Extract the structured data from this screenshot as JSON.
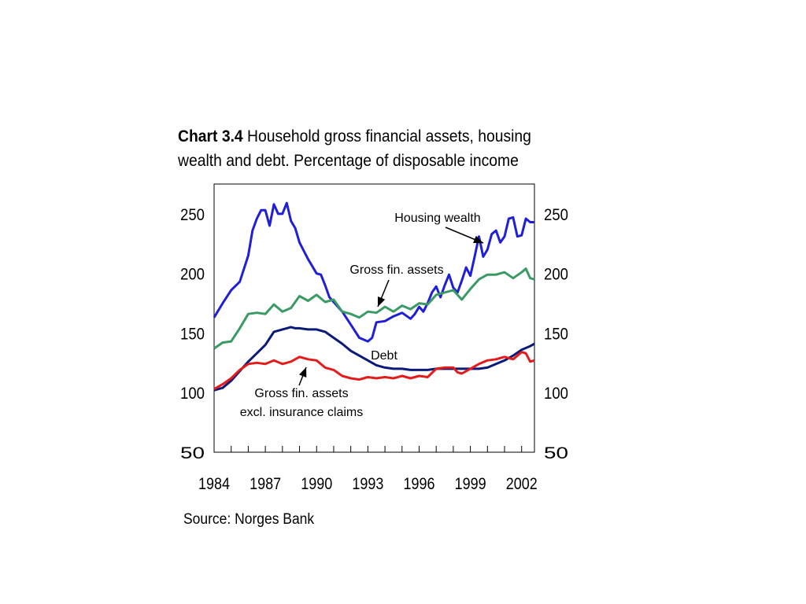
{
  "title": {
    "label": "Chart 3.4",
    "text": "Household gross financial assets, housing wealth and debt. Percentage of disposable income"
  },
  "source": "Source: Norges Bank",
  "chart_data": {
    "type": "line",
    "x_ticks": [
      "1984",
      "1987",
      "1990",
      "1993",
      "1996",
      "1999",
      "2002"
    ],
    "y_ticks": [
      50,
      100,
      150,
      200,
      250
    ],
    "ylim": [
      50,
      275
    ],
    "xlim": [
      1984,
      2002.75
    ],
    "grid": false,
    "colors": {
      "housing": "#1f1fd8",
      "gross": "#3a9a64",
      "debt": "#0a1a78",
      "gross_excl": "#e41b1b"
    },
    "annotations": [
      {
        "text": "Housing wealth"
      },
      {
        "text": "Gross fin. assets"
      },
      {
        "text": "Debt"
      },
      {
        "lines": [
          "Gross fin. assets",
          "excl. insurance claims"
        ]
      }
    ],
    "series": [
      {
        "key": "housing",
        "name": "Housing wealth",
        "x": [
          1984.0,
          1984.5,
          1985.0,
          1985.5,
          1986.0,
          1986.25,
          1986.5,
          1986.75,
          1987.0,
          1987.25,
          1987.5,
          1987.75,
          1988.0,
          1988.25,
          1988.5,
          1988.75,
          1989.0,
          1989.5,
          1990.0,
          1990.25,
          1990.5,
          1990.75,
          1991.0,
          1991.5,
          1992.0,
          1992.5,
          1993.0,
          1993.25,
          1993.5,
          1994.0,
          1994.5,
          1995.0,
          1995.5,
          1995.75,
          1996.0,
          1996.25,
          1996.5,
          1996.75,
          1997.0,
          1997.25,
          1997.5,
          1997.75,
          1998.0,
          1998.25,
          1998.5,
          1998.75,
          1999.0,
          1999.25,
          1999.5,
          1999.75,
          2000.0,
          2000.25,
          2000.5,
          2000.75,
          2001.0,
          2001.25,
          2001.5,
          2001.75,
          2002.0,
          2002.25,
          2002.5,
          2002.75
        ],
        "values": [
          163,
          175,
          186,
          193,
          215,
          236,
          246,
          253,
          253,
          240,
          258,
          250,
          250,
          259,
          244,
          238,
          226,
          212,
          200,
          199,
          190,
          180,
          176,
          168,
          157,
          146,
          143,
          146,
          159,
          160,
          164,
          167,
          162,
          166,
          172,
          168,
          175,
          184,
          189,
          180,
          190,
          199,
          188,
          184,
          194,
          205,
          198,
          214,
          231,
          214,
          220,
          233,
          236,
          226,
          231,
          246,
          247,
          231,
          232,
          246,
          243,
          243
        ]
      },
      {
        "key": "gross",
        "name": "Gross fin. assets",
        "x": [
          1984.0,
          1984.5,
          1985.0,
          1985.5,
          1986.0,
          1986.5,
          1987.0,
          1987.5,
          1988.0,
          1988.5,
          1989.0,
          1989.5,
          1990.0,
          1990.5,
          1991.0,
          1991.5,
          1992.0,
          1992.5,
          1993.0,
          1993.5,
          1994.0,
          1994.5,
          1995.0,
          1995.5,
          1996.0,
          1996.5,
          1997.0,
          1997.5,
          1998.0,
          1998.5,
          1999.0,
          1999.5,
          2000.0,
          2000.5,
          2001.0,
          2001.5,
          2002.0,
          2002.25,
          2002.5,
          2002.75
        ],
        "values": [
          137,
          142,
          143,
          154,
          166,
          167,
          166,
          174,
          168,
          171,
          181,
          177,
          182,
          176,
          178,
          168,
          166,
          163,
          168,
          167,
          172,
          168,
          173,
          170,
          175,
          174,
          182,
          184,
          186,
          178,
          187,
          195,
          199,
          199,
          201,
          196,
          201,
          204,
          196,
          195
        ]
      },
      {
        "key": "debt",
        "name": "Debt",
        "x": [
          1984.0,
          1984.5,
          1985.0,
          1985.5,
          1986.0,
          1986.5,
          1987.0,
          1987.5,
          1988.0,
          1988.25,
          1988.5,
          1988.75,
          1989.0,
          1989.5,
          1990.0,
          1990.5,
          1991.0,
          1991.5,
          1992.0,
          1992.5,
          1993.0,
          1993.5,
          1994.0,
          1994.5,
          1995.0,
          1995.5,
          1996.0,
          1996.5,
          1997.0,
          1997.5,
          1998.0,
          1998.5,
          1999.0,
          1999.5,
          2000.0,
          2000.5,
          2001.0,
          2001.5,
          2002.0,
          2002.5,
          2002.75
        ],
        "values": [
          102,
          104,
          110,
          118,
          126,
          133,
          140,
          151,
          153,
          154,
          155,
          154,
          154,
          153,
          153,
          151,
          146,
          141,
          135,
          131,
          127,
          123,
          121,
          120,
          120,
          119,
          119,
          119,
          120,
          120,
          120,
          120,
          120,
          120,
          121,
          124,
          127,
          131,
          136,
          139,
          141
        ]
      },
      {
        "key": "gross_excl",
        "name": "Gross fin. assets excl. insurance claims",
        "x": [
          1984.0,
          1984.5,
          1985.0,
          1985.5,
          1986.0,
          1986.5,
          1987.0,
          1987.5,
          1988.0,
          1988.5,
          1989.0,
          1989.5,
          1990.0,
          1990.5,
          1991.0,
          1991.5,
          1992.0,
          1992.5,
          1993.0,
          1993.5,
          1994.0,
          1994.5,
          1995.0,
          1995.5,
          1996.0,
          1996.5,
          1997.0,
          1997.5,
          1998.0,
          1998.25,
          1998.5,
          1999.0,
          1999.5,
          2000.0,
          2000.5,
          2001.0,
          2001.5,
          2002.0,
          2002.25,
          2002.5,
          2002.75
        ],
        "values": [
          103,
          107,
          112,
          119,
          124,
          125,
          124,
          127,
          124,
          126,
          130,
          128,
          127,
          121,
          119,
          114,
          112,
          111,
          113,
          112,
          113,
          112,
          114,
          112,
          114,
          113,
          120,
          121,
          121,
          117,
          116,
          120,
          124,
          127,
          128,
          130,
          128,
          134,
          133,
          126,
          127
        ]
      }
    ]
  }
}
